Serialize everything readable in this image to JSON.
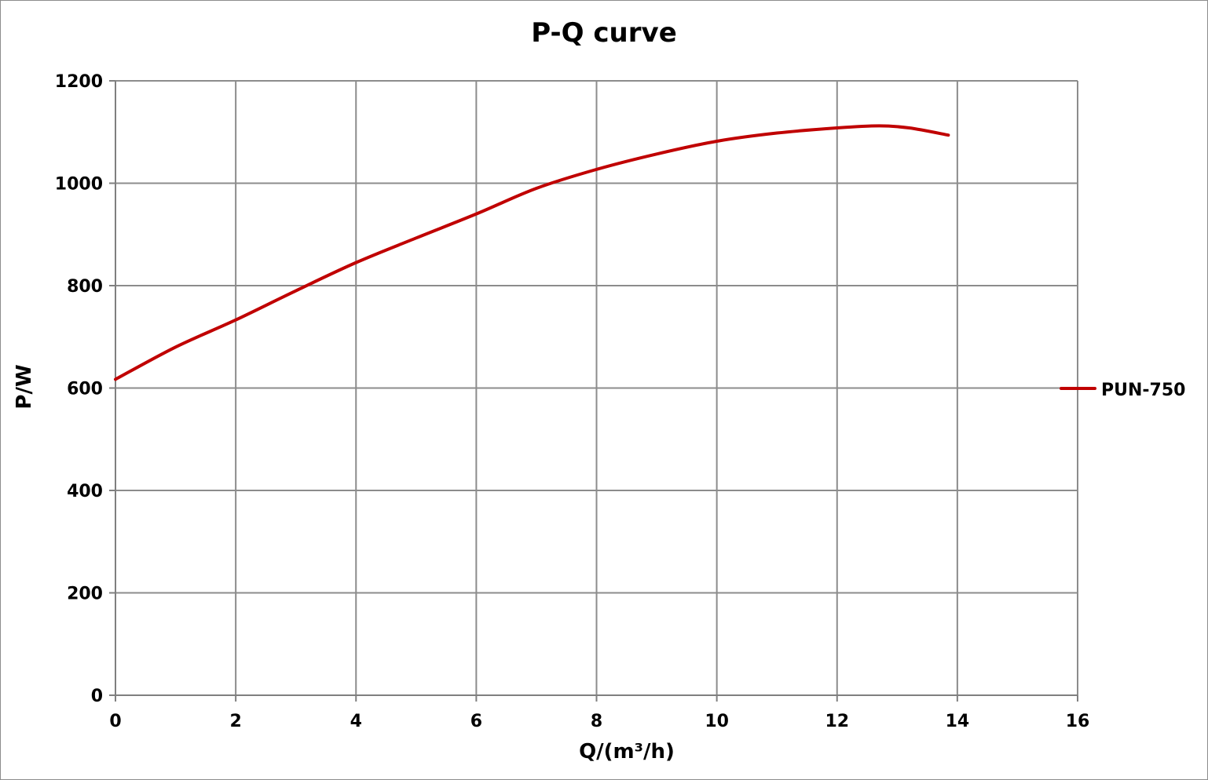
{
  "chart_data": {
    "type": "line",
    "title": "P-Q  curve",
    "xlabel": "Q/(m³/h)",
    "ylabel": "P/W",
    "xlim": [
      0,
      16
    ],
    "ylim": [
      0,
      1200
    ],
    "x_ticks": [
      0,
      2,
      4,
      6,
      8,
      10,
      12,
      14,
      16
    ],
    "y_ticks": [
      0,
      200,
      400,
      600,
      800,
      1000,
      1200
    ],
    "x_tick_labels": [
      "0",
      "2",
      "4",
      "6",
      "8",
      "10",
      "12",
      "14",
      "16"
    ],
    "y_tick_labels": [
      "0",
      "200",
      "400",
      "600",
      "800",
      "1000",
      "1200"
    ],
    "grid": true,
    "legend_position": "right",
    "series": [
      {
        "name": "PUN-750",
        "color": "#c00000",
        "x": [
          0,
          1,
          2,
          3,
          4,
          5,
          6,
          7,
          8,
          9,
          10,
          11,
          12,
          12.7,
          13.2,
          13.85
        ],
        "y": [
          617,
          680,
          733,
          790,
          845,
          893,
          940,
          990,
          1027,
          1057,
          1082,
          1098,
          1108,
          1112,
          1108,
          1094
        ]
      }
    ]
  }
}
